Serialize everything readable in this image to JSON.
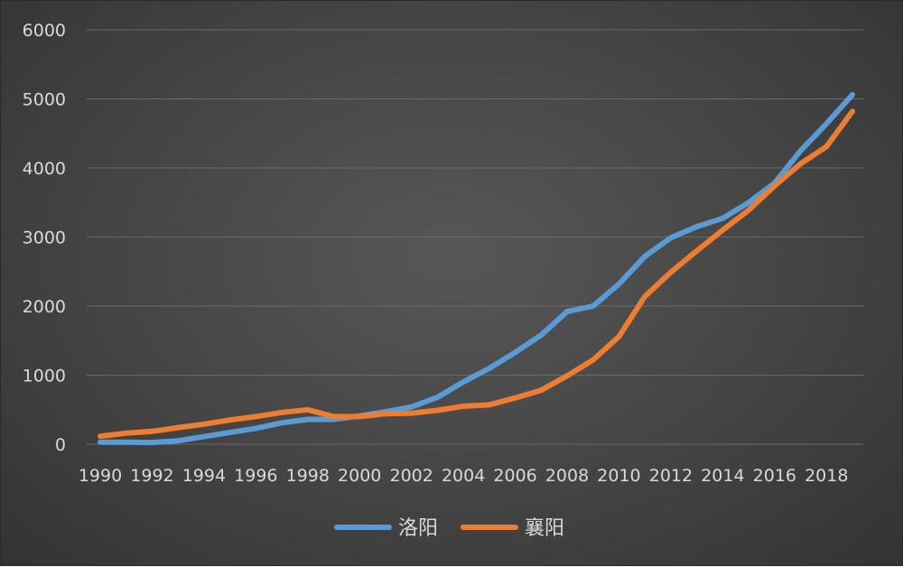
{
  "chart_data": {
    "type": "line",
    "title": "",
    "xlabel": "",
    "ylabel": "",
    "ylim": [
      0,
      6000
    ],
    "yticks": [
      "0",
      "1000",
      "2000",
      "3000",
      "4000",
      "5000",
      "6000"
    ],
    "xtick_labels": [
      "1990",
      "1992",
      "1994",
      "1996",
      "1998",
      "2000",
      "2002",
      "2004",
      "2006",
      "2008",
      "2010",
      "2012",
      "2014",
      "2016",
      "2018"
    ],
    "x": [
      1990,
      1991,
      1992,
      1993,
      1994,
      1995,
      1996,
      1997,
      1998,
      1999,
      2000,
      2001,
      2002,
      2003,
      2004,
      2005,
      2006,
      2007,
      2008,
      2009,
      2010,
      2011,
      2012,
      2013,
      2014,
      2015,
      2016,
      2017,
      2018,
      2019
    ],
    "grid": true,
    "legend_position": "bottom",
    "series": [
      {
        "name": "洛阳",
        "color": "#5b9bd5",
        "values": [
          30,
          30,
          25,
          50,
          110,
          170,
          230,
          310,
          360,
          360,
          410,
          470,
          540,
          680,
          900,
          1100,
          1330,
          1580,
          1920,
          2000,
          2320,
          2720,
          2990,
          3150,
          3270,
          3500,
          3780,
          4250,
          4640,
          5060
        ]
      },
      {
        "name": "襄阳",
        "color": "#ed7d31",
        "values": [
          115,
          160,
          185,
          240,
          290,
          350,
          400,
          460,
          500,
          400,
          400,
          440,
          450,
          490,
          550,
          570,
          670,
          780,
          990,
          1220,
          1560,
          2140,
          2490,
          2800,
          3100,
          3390,
          3740,
          4060,
          4310,
          4820
        ]
      }
    ]
  }
}
